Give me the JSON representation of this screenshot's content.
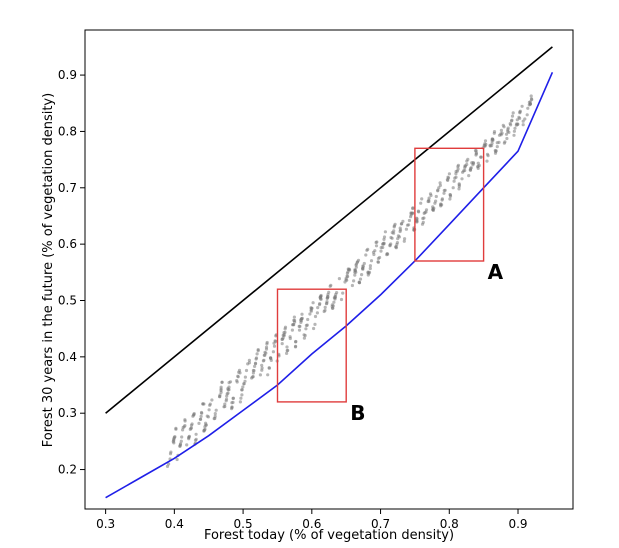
{
  "chart_data": {
    "type": "scatter",
    "title": "",
    "xlabel": "Forest today (% of vegetation density)",
    "ylabel": "Forest 30 years in the future (% of vegetation density)",
    "xlim": [
      0.27,
      0.98
    ],
    "ylim": [
      0.13,
      0.98
    ],
    "grid": false,
    "xticks": [
      {
        "value": 0.3,
        "label": "0.3"
      },
      {
        "value": 0.4,
        "label": "0.4"
      },
      {
        "value": 0.5,
        "label": "0.5"
      },
      {
        "value": 0.6,
        "label": "0.6"
      },
      {
        "value": 0.7,
        "label": "0.7"
      },
      {
        "value": 0.8,
        "label": "0.8"
      },
      {
        "value": 0.9,
        "label": "0.9"
      }
    ],
    "yticks": [
      {
        "value": 0.2,
        "label": "0.2"
      },
      {
        "value": 0.3,
        "label": "0.3"
      },
      {
        "value": 0.4,
        "label": "0.4"
      },
      {
        "value": 0.5,
        "label": "0.5"
      },
      {
        "value": 0.6,
        "label": "0.6"
      },
      {
        "value": 0.7,
        "label": "0.7"
      },
      {
        "value": 0.8,
        "label": "0.8"
      },
      {
        "value": 0.9,
        "label": "0.9"
      }
    ],
    "series": [
      {
        "name": "identity line",
        "kind": "line",
        "color": "#000000",
        "x": [
          0.3,
          0.95
        ],
        "y": [
          0.3,
          0.95
        ]
      },
      {
        "name": "fitted curve",
        "kind": "line",
        "color": "#1f1fe8",
        "x": [
          0.3,
          0.35,
          0.4,
          0.45,
          0.5,
          0.55,
          0.6,
          0.65,
          0.7,
          0.75,
          0.8,
          0.85,
          0.9,
          0.95
        ],
        "y": [
          0.15,
          0.185,
          0.22,
          0.26,
          0.305,
          0.35,
          0.405,
          0.455,
          0.51,
          0.57,
          0.635,
          0.7,
          0.765,
          0.905
        ]
      },
      {
        "name": "simulated points",
        "kind": "scatter",
        "color": "#7a7a7a",
        "x_range": [
          0.39,
          0.92
        ],
        "y_lower_range": [
          0.19,
          0.82
        ],
        "y_upper_range": [
          0.26,
          0.86
        ],
        "bands": 40
      }
    ],
    "regions": [
      {
        "label": "A",
        "color": "#e03c3c",
        "x": [
          0.75,
          0.85
        ],
        "y": [
          0.57,
          0.77
        ]
      },
      {
        "label": "B",
        "color": "#e03c3c",
        "x": [
          0.55,
          0.65
        ],
        "y": [
          0.32,
          0.52
        ]
      }
    ]
  }
}
